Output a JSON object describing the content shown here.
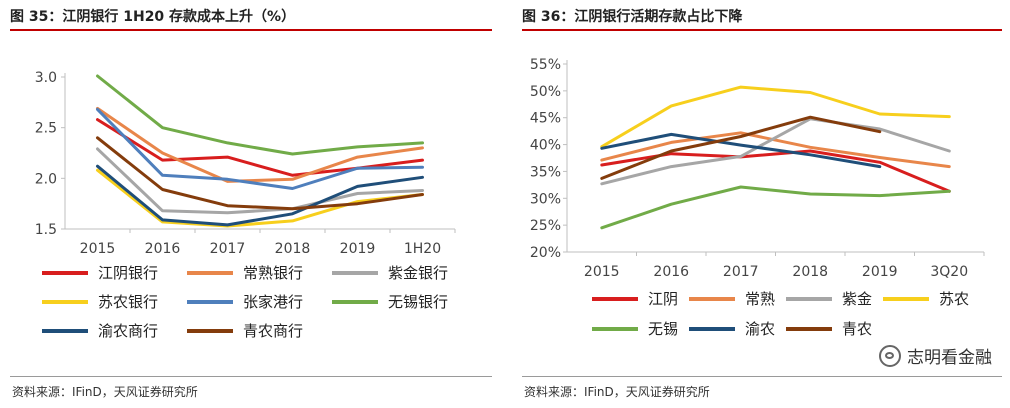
{
  "colors": {
    "accent": "#c0504d",
    "rule": "#c00000"
  },
  "watermark": {
    "text": "志明看金融",
    "icon": "wechat-icon"
  },
  "chart_data": [
    {
      "type": "line",
      "title": "图 35：江阴银行 1H20 存款成本上升（%）",
      "source": "资料来源：IFinD，天风证券研究所",
      "categories": [
        "2015",
        "2016",
        "2017",
        "2018",
        "2019",
        "1H20"
      ],
      "ylim": [
        1.5,
        3.0
      ],
      "yticks": [
        "1.5",
        "2.0",
        "2.5",
        "3.0"
      ],
      "ytick_values": [
        1.5,
        2.0,
        2.5,
        3.0
      ],
      "grid": false,
      "legend_position": "bottom",
      "series": [
        {
          "name": "江阴银行",
          "color": "#d81e1e",
          "values": [
            2.58,
            2.18,
            2.21,
            2.03,
            2.1,
            2.18
          ]
        },
        {
          "name": "常熟银行",
          "color": "#e8864a",
          "values": [
            2.69,
            2.25,
            1.97,
            1.99,
            2.21,
            2.3
          ]
        },
        {
          "name": "紫金银行",
          "color": "#a6a6a6",
          "values": [
            2.29,
            1.68,
            1.66,
            1.7,
            1.85,
            1.88
          ]
        },
        {
          "name": "苏农银行",
          "color": "#f7cf1d",
          "values": [
            2.08,
            1.57,
            1.53,
            1.58,
            1.77,
            1.84
          ]
        },
        {
          "name": "张家港行",
          "color": "#4f7fbc",
          "values": [
            2.68,
            2.03,
            1.99,
            1.9,
            2.1,
            2.11
          ]
        },
        {
          "name": "无锡银行",
          "color": "#71ab48",
          "values": [
            3.01,
            2.5,
            2.35,
            2.24,
            2.31,
            2.35
          ]
        },
        {
          "name": "渝农商行",
          "color": "#1f4e79",
          "values": [
            2.12,
            1.59,
            1.54,
            1.65,
            1.92,
            2.01
          ]
        },
        {
          "name": "青农商行",
          "color": "#843c0c",
          "values": [
            2.4,
            1.89,
            1.73,
            1.7,
            1.75,
            1.84
          ]
        }
      ]
    },
    {
      "type": "line",
      "title": "图 36：江阴银行活期存款占比下降",
      "source": "资料来源：IFinD，天风证券研究所",
      "categories": [
        "2015",
        "2016",
        "2017",
        "2018",
        "2019",
        "3Q20"
      ],
      "ylim": [
        20,
        55
      ],
      "yticks": [
        "20%",
        "25%",
        "30%",
        "35%",
        "40%",
        "45%",
        "50%",
        "55%"
      ],
      "ytick_values": [
        20,
        25,
        30,
        35,
        40,
        45,
        50,
        55
      ],
      "grid": false,
      "legend_position": "bottom",
      "series": [
        {
          "name": "江阴",
          "color": "#d81e1e",
          "values": [
            36.2,
            38.3,
            37.7,
            38.8,
            36.7,
            31.3
          ]
        },
        {
          "name": "常熟",
          "color": "#e8864a",
          "values": [
            37.1,
            40.4,
            42.2,
            39.5,
            37.6,
            35.9
          ]
        },
        {
          "name": "紫金",
          "color": "#a6a6a6",
          "values": [
            32.7,
            35.9,
            37.8,
            44.8,
            42.9,
            38.8
          ]
        },
        {
          "name": "苏农",
          "color": "#f7cf1d",
          "values": [
            39.6,
            47.2,
            50.7,
            49.7,
            45.7,
            45.2
          ]
        },
        {
          "name": "无锡",
          "color": "#71ab48",
          "values": [
            24.5,
            28.9,
            32.1,
            30.8,
            30.5,
            31.3
          ]
        },
        {
          "name": "渝农",
          "color": "#1f4e79",
          "values": [
            39.3,
            41.9,
            39.9,
            38.1,
            35.9,
            null
          ]
        },
        {
          "name": "青农",
          "color": "#843c0c",
          "values": [
            33.7,
            38.8,
            41.5,
            45.1,
            42.4,
            null
          ]
        }
      ]
    }
  ]
}
